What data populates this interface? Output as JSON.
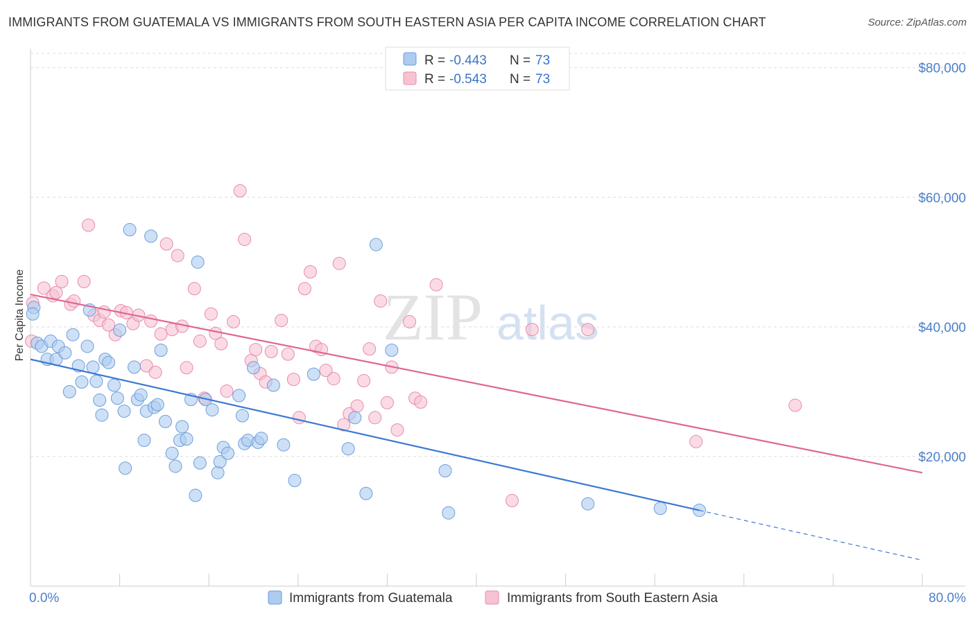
{
  "title": "IMMIGRANTS FROM GUATEMALA VS IMMIGRANTS FROM SOUTH EASTERN ASIA PER CAPITA INCOME CORRELATION CHART",
  "source": "Source: ZipAtlas.com",
  "watermark": {
    "zip": "ZIP",
    "atlas": "atlas"
  },
  "colors": {
    "blue_fill": "#aecbf0",
    "blue_stroke": "#6a9edb",
    "blue_line": "#3a78d4",
    "pink_fill": "#f7c3d3",
    "pink_stroke": "#e88aa8",
    "pink_line": "#e06590",
    "tick_text": "#4a7fc9"
  },
  "stats": {
    "rows": [
      {
        "r_label": "R =",
        "r_value": "-0.443",
        "n_label": "N =",
        "n_value": "73"
      },
      {
        "r_label": "R =",
        "r_value": "-0.543",
        "n_label": "N =",
        "n_value": "73"
      }
    ]
  },
  "chart_data": {
    "type": "scatter",
    "title": "IMMIGRANTS FROM GUATEMALA VS IMMIGRANTS FROM SOUTH EASTERN ASIA PER CAPITA INCOME CORRELATION CHART",
    "xlabel": "",
    "ylabel": "Per Capita Income",
    "xlim": [
      0,
      80
    ],
    "ylim": [
      0,
      82000
    ],
    "x_tick_labels": {
      "min": "0.0%",
      "max": "80.0%"
    },
    "y_ticks": [
      {
        "value": 20000,
        "label": "$20,000"
      },
      {
        "value": 40000,
        "label": "$40,000"
      },
      {
        "value": 60000,
        "label": "$60,000"
      },
      {
        "value": 80000,
        "label": "$80,000"
      }
    ],
    "grid": true,
    "legend_position": "bottom",
    "series": [
      {
        "name": "Immigrants from Guatemala",
        "color": "#aecbf0",
        "trend": {
          "x0": 0,
          "y0": 35000,
          "x1": 60,
          "y1": 11700,
          "dash_to_x": 80,
          "dash_to_y": 4000
        },
        "points": [
          [
            0.3,
            43000
          ],
          [
            0.2,
            42000
          ],
          [
            0.6,
            37500
          ],
          [
            1.0,
            37000
          ],
          [
            1.5,
            35000
          ],
          [
            1.8,
            37800
          ],
          [
            2.5,
            37000
          ],
          [
            2.3,
            35000
          ],
          [
            3.1,
            36000
          ],
          [
            3.8,
            38800
          ],
          [
            3.5,
            30000
          ],
          [
            4.3,
            34000
          ],
          [
            4.6,
            31500
          ],
          [
            5.1,
            37000
          ],
          [
            5.3,
            42600
          ],
          [
            5.6,
            33800
          ],
          [
            5.9,
            31600
          ],
          [
            6.2,
            28700
          ],
          [
            6.4,
            26400
          ],
          [
            6.7,
            35000
          ],
          [
            7.0,
            34500
          ],
          [
            7.5,
            31000
          ],
          [
            7.8,
            29000
          ],
          [
            8.0,
            39500
          ],
          [
            8.4,
            27000
          ],
          [
            8.5,
            18200
          ],
          [
            8.9,
            55000
          ],
          [
            9.3,
            33800
          ],
          [
            9.6,
            28800
          ],
          [
            9.9,
            29500
          ],
          [
            10.2,
            22500
          ],
          [
            10.4,
            27000
          ],
          [
            10.8,
            54000
          ],
          [
            11.1,
            27600
          ],
          [
            11.4,
            28000
          ],
          [
            11.7,
            36400
          ],
          [
            12.1,
            25400
          ],
          [
            12.7,
            20500
          ],
          [
            13.0,
            18500
          ],
          [
            13.4,
            22500
          ],
          [
            13.6,
            24600
          ],
          [
            14.0,
            22700
          ],
          [
            14.4,
            28800
          ],
          [
            14.8,
            14000
          ],
          [
            15.0,
            50000
          ],
          [
            15.2,
            19000
          ],
          [
            15.7,
            28800
          ],
          [
            16.3,
            27200
          ],
          [
            16.8,
            17500
          ],
          [
            17.0,
            19200
          ],
          [
            17.3,
            21400
          ],
          [
            17.7,
            20500
          ],
          [
            18.7,
            29400
          ],
          [
            19.0,
            26300
          ],
          [
            19.2,
            22000
          ],
          [
            19.5,
            22500
          ],
          [
            20.0,
            33700
          ],
          [
            20.4,
            22200
          ],
          [
            20.7,
            22800
          ],
          [
            21.8,
            31000
          ],
          [
            22.7,
            21800
          ],
          [
            23.7,
            16300
          ],
          [
            25.4,
            32700
          ],
          [
            28.5,
            21200
          ],
          [
            29.1,
            26000
          ],
          [
            30.1,
            14300
          ],
          [
            31.0,
            52700
          ],
          [
            32.4,
            36400
          ],
          [
            37.2,
            17800
          ],
          [
            37.5,
            11300
          ],
          [
            50.0,
            12700
          ],
          [
            60.0,
            11700
          ],
          [
            56.5,
            12000
          ]
        ]
      },
      {
        "name": "Immigrants from South Eastern Asia",
        "color": "#f7c3d3",
        "trend": {
          "x0": 0,
          "y0": 45000,
          "x1": 80,
          "y1": 17500
        },
        "points": [
          [
            0.2,
            43700
          ],
          [
            0.1,
            37800
          ],
          [
            1.2,
            46000
          ],
          [
            2.0,
            44800
          ],
          [
            2.3,
            45300
          ],
          [
            2.8,
            47000
          ],
          [
            3.6,
            43500
          ],
          [
            3.9,
            44000
          ],
          [
            4.8,
            47000
          ],
          [
            5.2,
            55700
          ],
          [
            5.7,
            41800
          ],
          [
            6.2,
            41000
          ],
          [
            6.6,
            42300
          ],
          [
            7.0,
            40300
          ],
          [
            7.6,
            38800
          ],
          [
            8.1,
            42500
          ],
          [
            8.6,
            42200
          ],
          [
            9.2,
            40500
          ],
          [
            9.7,
            41800
          ],
          [
            10.4,
            34000
          ],
          [
            10.8,
            40900
          ],
          [
            11.2,
            33000
          ],
          [
            11.7,
            38900
          ],
          [
            12.2,
            52800
          ],
          [
            12.7,
            39600
          ],
          [
            13.2,
            51000
          ],
          [
            13.6,
            40100
          ],
          [
            14.0,
            33700
          ],
          [
            14.7,
            45900
          ],
          [
            15.2,
            37800
          ],
          [
            15.6,
            29000
          ],
          [
            16.2,
            42000
          ],
          [
            16.6,
            39000
          ],
          [
            17.1,
            37400
          ],
          [
            17.6,
            30100
          ],
          [
            18.2,
            40800
          ],
          [
            18.8,
            61000
          ],
          [
            19.2,
            53500
          ],
          [
            19.8,
            34800
          ],
          [
            20.2,
            36500
          ],
          [
            20.6,
            32800
          ],
          [
            21.1,
            31500
          ],
          [
            21.6,
            36200
          ],
          [
            22.5,
            41000
          ],
          [
            23.1,
            35800
          ],
          [
            23.6,
            31900
          ],
          [
            24.1,
            26000
          ],
          [
            24.6,
            45900
          ],
          [
            25.1,
            48500
          ],
          [
            25.6,
            37000
          ],
          [
            26.1,
            36500
          ],
          [
            26.5,
            33300
          ],
          [
            27.2,
            32000
          ],
          [
            27.7,
            49800
          ],
          [
            28.1,
            24900
          ],
          [
            28.6,
            26600
          ],
          [
            29.3,
            27800
          ],
          [
            29.9,
            31700
          ],
          [
            30.4,
            36600
          ],
          [
            30.9,
            26000
          ],
          [
            31.4,
            44000
          ],
          [
            32.0,
            28300
          ],
          [
            32.4,
            33800
          ],
          [
            32.9,
            24100
          ],
          [
            34.0,
            40800
          ],
          [
            34.5,
            29000
          ],
          [
            35.0,
            28400
          ],
          [
            36.4,
            46500
          ],
          [
            43.2,
            13200
          ],
          [
            50.0,
            39600
          ],
          [
            59.7,
            22300
          ],
          [
            68.6,
            27900
          ],
          [
            45.0,
            39600
          ]
        ]
      }
    ]
  },
  "legend": {
    "items": [
      {
        "label": "Immigrants from Guatemala"
      },
      {
        "label": "Immigrants from South Eastern Asia"
      }
    ]
  }
}
